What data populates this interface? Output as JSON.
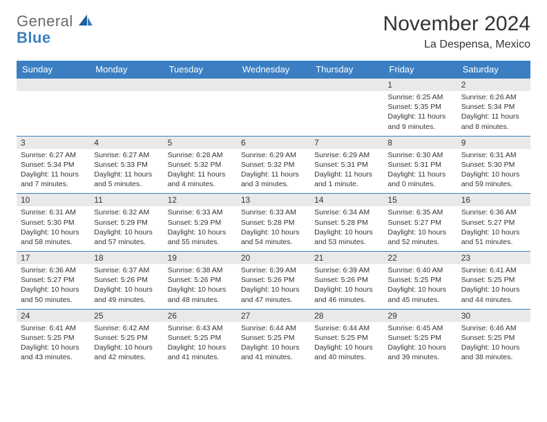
{
  "logo": {
    "part1": "General",
    "part2": "Blue"
  },
  "title": "November 2024",
  "location": "La Despensa, Mexico",
  "colors": {
    "header_bg": "#3b7fc2",
    "header_text": "#ffffff",
    "daynum_bg": "#e9e9e9",
    "border": "#3b7fc2",
    "text": "#333333",
    "logo_gray": "#6a6a6a",
    "logo_blue": "#3b7fc2"
  },
  "weekdays": [
    "Sunday",
    "Monday",
    "Tuesday",
    "Wednesday",
    "Thursday",
    "Friday",
    "Saturday"
  ],
  "weeks": [
    [
      null,
      null,
      null,
      null,
      null,
      {
        "n": "1",
        "sr": "Sunrise: 6:25 AM",
        "ss": "Sunset: 5:35 PM",
        "dl": "Daylight: 11 hours and 9 minutes."
      },
      {
        "n": "2",
        "sr": "Sunrise: 6:26 AM",
        "ss": "Sunset: 5:34 PM",
        "dl": "Daylight: 11 hours and 8 minutes."
      }
    ],
    [
      {
        "n": "3",
        "sr": "Sunrise: 6:27 AM",
        "ss": "Sunset: 5:34 PM",
        "dl": "Daylight: 11 hours and 7 minutes."
      },
      {
        "n": "4",
        "sr": "Sunrise: 6:27 AM",
        "ss": "Sunset: 5:33 PM",
        "dl": "Daylight: 11 hours and 5 minutes."
      },
      {
        "n": "5",
        "sr": "Sunrise: 6:28 AM",
        "ss": "Sunset: 5:32 PM",
        "dl": "Daylight: 11 hours and 4 minutes."
      },
      {
        "n": "6",
        "sr": "Sunrise: 6:29 AM",
        "ss": "Sunset: 5:32 PM",
        "dl": "Daylight: 11 hours and 3 minutes."
      },
      {
        "n": "7",
        "sr": "Sunrise: 6:29 AM",
        "ss": "Sunset: 5:31 PM",
        "dl": "Daylight: 11 hours and 1 minute."
      },
      {
        "n": "8",
        "sr": "Sunrise: 6:30 AM",
        "ss": "Sunset: 5:31 PM",
        "dl": "Daylight: 11 hours and 0 minutes."
      },
      {
        "n": "9",
        "sr": "Sunrise: 6:31 AM",
        "ss": "Sunset: 5:30 PM",
        "dl": "Daylight: 10 hours and 59 minutes."
      }
    ],
    [
      {
        "n": "10",
        "sr": "Sunrise: 6:31 AM",
        "ss": "Sunset: 5:30 PM",
        "dl": "Daylight: 10 hours and 58 minutes."
      },
      {
        "n": "11",
        "sr": "Sunrise: 6:32 AM",
        "ss": "Sunset: 5:29 PM",
        "dl": "Daylight: 10 hours and 57 minutes."
      },
      {
        "n": "12",
        "sr": "Sunrise: 6:33 AM",
        "ss": "Sunset: 5:29 PM",
        "dl": "Daylight: 10 hours and 55 minutes."
      },
      {
        "n": "13",
        "sr": "Sunrise: 6:33 AM",
        "ss": "Sunset: 5:28 PM",
        "dl": "Daylight: 10 hours and 54 minutes."
      },
      {
        "n": "14",
        "sr": "Sunrise: 6:34 AM",
        "ss": "Sunset: 5:28 PM",
        "dl": "Daylight: 10 hours and 53 minutes."
      },
      {
        "n": "15",
        "sr": "Sunrise: 6:35 AM",
        "ss": "Sunset: 5:27 PM",
        "dl": "Daylight: 10 hours and 52 minutes."
      },
      {
        "n": "16",
        "sr": "Sunrise: 6:36 AM",
        "ss": "Sunset: 5:27 PM",
        "dl": "Daylight: 10 hours and 51 minutes."
      }
    ],
    [
      {
        "n": "17",
        "sr": "Sunrise: 6:36 AM",
        "ss": "Sunset: 5:27 PM",
        "dl": "Daylight: 10 hours and 50 minutes."
      },
      {
        "n": "18",
        "sr": "Sunrise: 6:37 AM",
        "ss": "Sunset: 5:26 PM",
        "dl": "Daylight: 10 hours and 49 minutes."
      },
      {
        "n": "19",
        "sr": "Sunrise: 6:38 AM",
        "ss": "Sunset: 5:26 PM",
        "dl": "Daylight: 10 hours and 48 minutes."
      },
      {
        "n": "20",
        "sr": "Sunrise: 6:39 AM",
        "ss": "Sunset: 5:26 PM",
        "dl": "Daylight: 10 hours and 47 minutes."
      },
      {
        "n": "21",
        "sr": "Sunrise: 6:39 AM",
        "ss": "Sunset: 5:26 PM",
        "dl": "Daylight: 10 hours and 46 minutes."
      },
      {
        "n": "22",
        "sr": "Sunrise: 6:40 AM",
        "ss": "Sunset: 5:25 PM",
        "dl": "Daylight: 10 hours and 45 minutes."
      },
      {
        "n": "23",
        "sr": "Sunrise: 6:41 AM",
        "ss": "Sunset: 5:25 PM",
        "dl": "Daylight: 10 hours and 44 minutes."
      }
    ],
    [
      {
        "n": "24",
        "sr": "Sunrise: 6:41 AM",
        "ss": "Sunset: 5:25 PM",
        "dl": "Daylight: 10 hours and 43 minutes."
      },
      {
        "n": "25",
        "sr": "Sunrise: 6:42 AM",
        "ss": "Sunset: 5:25 PM",
        "dl": "Daylight: 10 hours and 42 minutes."
      },
      {
        "n": "26",
        "sr": "Sunrise: 6:43 AM",
        "ss": "Sunset: 5:25 PM",
        "dl": "Daylight: 10 hours and 41 minutes."
      },
      {
        "n": "27",
        "sr": "Sunrise: 6:44 AM",
        "ss": "Sunset: 5:25 PM",
        "dl": "Daylight: 10 hours and 41 minutes."
      },
      {
        "n": "28",
        "sr": "Sunrise: 6:44 AM",
        "ss": "Sunset: 5:25 PM",
        "dl": "Daylight: 10 hours and 40 minutes."
      },
      {
        "n": "29",
        "sr": "Sunrise: 6:45 AM",
        "ss": "Sunset: 5:25 PM",
        "dl": "Daylight: 10 hours and 39 minutes."
      },
      {
        "n": "30",
        "sr": "Sunrise: 6:46 AM",
        "ss": "Sunset: 5:25 PM",
        "dl": "Daylight: 10 hours and 38 minutes."
      }
    ]
  ]
}
